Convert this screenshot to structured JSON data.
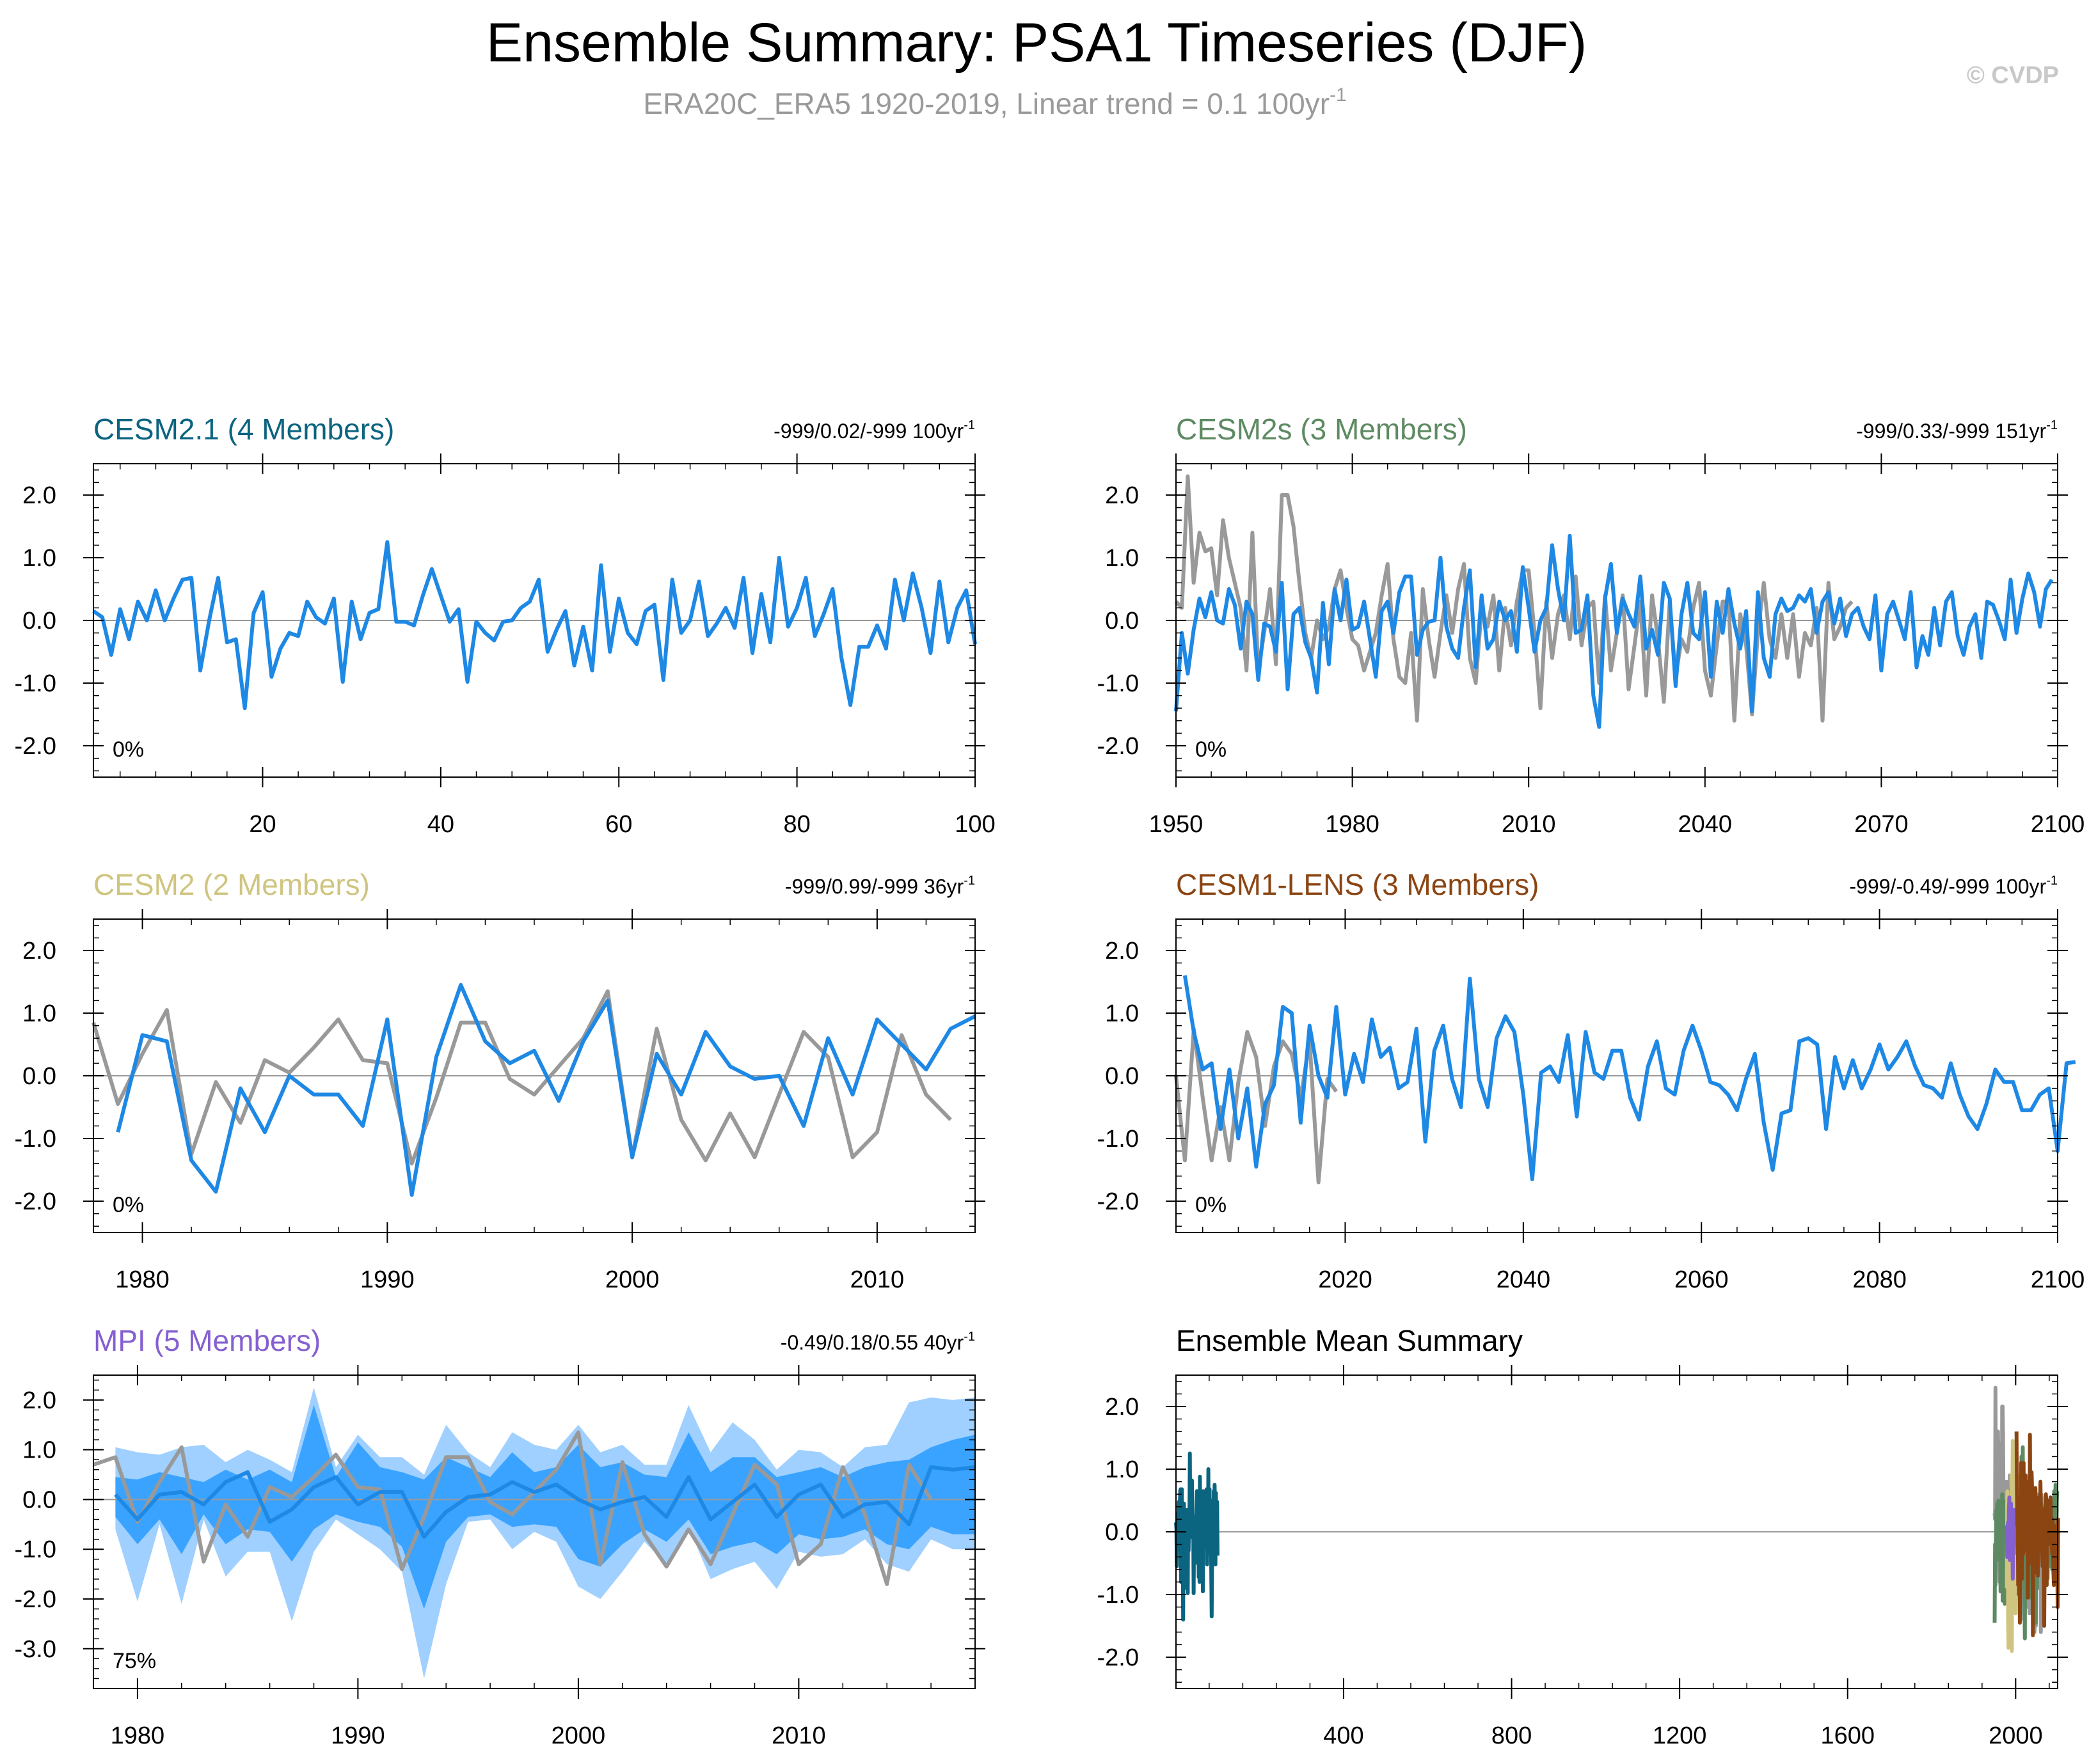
{
  "page": {
    "title": "Ensemble Summary: PSA1 Timeseries (DJF)",
    "subtitle": "ERA20C_ERA5 1920-2019, Linear trend = 0.1 100yr",
    "subtitle_exponent": "-1",
    "copyright": "© CVDP"
  },
  "colors": {
    "model_line": "#1e88e5",
    "obs_line": "#999999",
    "spread_outer": "#9fd0ff",
    "spread_inner": "#3aa3ff",
    "CESM2.1": "#0b6480",
    "CESM2s": "#5d8a62",
    "CESM2": "#cfc580",
    "CESM1-LENS": "#8b4513",
    "MPI": "#8560d0"
  },
  "chart_data": [
    {
      "id": "cesm21",
      "type": "line",
      "title": "CESM2.1 (4 Members)",
      "title_color": "#0b6480",
      "trend_label": "-999/0.02/-999 100yr",
      "trend_exp": "-1",
      "pct_label": "0%",
      "xlim": [
        1,
        100
      ],
      "ylim": [
        -2.5,
        2.5
      ],
      "xticks": [
        20,
        40,
        60,
        80,
        100
      ],
      "yticks": [
        -2.0,
        -1.0,
        0.0,
        1.0,
        2.0
      ],
      "ytick_labels": [
        "-2.0",
        "-1.0",
        "0.0",
        "1.0",
        "2.0"
      ],
      "series": [
        {
          "role": "model",
          "x_start": 1,
          "x_step": 1,
          "values": [
            0.15,
            0.05,
            -0.55,
            0.18,
            -0.3,
            0.3,
            0.0,
            0.48,
            0.0,
            0.35,
            0.65,
            0.68,
            -0.8,
            0.0,
            0.68,
            -0.35,
            -0.3,
            -1.4,
            0.12,
            0.45,
            -0.9,
            -0.45,
            -0.2,
            -0.25,
            0.3,
            0.05,
            -0.05,
            0.35,
            -0.98,
            0.3,
            -0.3,
            0.12,
            0.18,
            1.25,
            -0.02,
            -0.02,
            -0.08,
            0.4,
            0.82,
            0.4,
            -0.02,
            0.18,
            -0.98,
            -0.02,
            -0.2,
            -0.32,
            -0.02,
            0.0,
            0.2,
            0.3,
            0.65,
            -0.5,
            -0.15,
            0.15,
            -0.72,
            -0.1,
            -0.8,
            0.88,
            -0.5,
            0.35,
            -0.2,
            -0.38,
            0.15,
            0.25,
            -0.95,
            0.65,
            -0.2,
            0.0,
            0.62,
            -0.25,
            -0.05,
            0.2,
            -0.12,
            0.68,
            -0.52,
            0.42,
            -0.35,
            1.0,
            -0.1,
            0.2,
            0.68,
            -0.25,
            0.1,
            0.5,
            -0.6,
            -1.35,
            -0.42,
            -0.42,
            -0.08,
            -0.45,
            0.65,
            0.0,
            0.75,
            0.2,
            -0.52,
            0.62,
            -0.35,
            0.2,
            0.48,
            -0.38
          ]
        }
      ]
    },
    {
      "id": "cesm2s",
      "type": "line",
      "title": "CESM2s (3 Members)",
      "title_color": "#5d8a62",
      "trend_label": "-999/0.33/-999 151yr",
      "trend_exp": "-1",
      "pct_label": "0%",
      "xlim": [
        1950,
        2100
      ],
      "ylim": [
        -2.5,
        2.5
      ],
      "xticks": [
        1950,
        1980,
        2010,
        2040,
        2070,
        2100
      ],
      "yticks": [
        -2.0,
        -1.0,
        0.0,
        1.0,
        2.0
      ],
      "ytick_labels": [
        "-2.0",
        "-1.0",
        "0.0",
        "1.0",
        "2.0"
      ],
      "series": [
        {
          "role": "obs",
          "x_start": 1950,
          "x_step": 1,
          "values": [
            0.3,
            0.2,
            2.3,
            0.6,
            1.4,
            1.1,
            1.15,
            0.4,
            1.6,
            1.0,
            0.6,
            0.2,
            -0.8,
            1.4,
            -0.8,
            -0.2,
            0.5,
            -0.7,
            2.0,
            2.0,
            1.5,
            0.6,
            -0.2,
            -0.6,
            0.0,
            -0.3,
            -0.1,
            0.5,
            0.8,
            0.2,
            -0.3,
            -0.4,
            -0.8,
            -0.5,
            -0.2,
            0.4,
            0.9,
            -0.3,
            -0.9,
            -1.0,
            -0.2,
            -1.6,
            0.5,
            -0.3,
            -0.9,
            -0.2,
            0.4,
            -0.2,
            0.5,
            0.9,
            -0.6,
            -1.0,
            0.2,
            -0.1,
            0.4,
            -0.8,
            0.2,
            -0.4,
            0.3,
            0.8,
            0.8,
            -0.2,
            -1.4,
            0.3,
            -0.6,
            0.1,
            0.4,
            -0.3,
            0.7,
            -0.4,
            0.2,
            0.3,
            -1.0,
            0.4,
            -0.8,
            -0.2,
            0.4,
            -1.1,
            -0.4,
            0.3,
            -1.2,
            0.4,
            -0.3,
            -1.3,
            0.3,
            -0.9,
            -0.3,
            -0.5,
            0.2,
            0.6,
            -0.8,
            -1.2,
            -0.4,
            0.3,
            0.3,
            -1.6,
            0.1,
            -0.4,
            -1.5,
            -0.2,
            0.6,
            -0.3,
            -0.6,
            0.1,
            -0.6,
            0.1,
            -0.9,
            -0.2,
            -0.4,
            0.2,
            -1.6,
            0.6,
            -0.3,
            -0.1,
            0.2,
            0.3
          ]
        },
        {
          "role": "model",
          "x_start": 1950,
          "x_step": 1,
          "values": [
            -1.45,
            -0.2,
            -0.85,
            -0.15,
            0.35,
            0.05,
            0.45,
            0.0,
            -0.05,
            0.5,
            0.25,
            -0.45,
            0.3,
            0.1,
            -0.95,
            -0.05,
            -0.1,
            -0.5,
            0.6,
            -1.1,
            0.1,
            0.2,
            -0.35,
            -0.6,
            -1.15,
            0.28,
            -0.7,
            0.5,
            0.0,
            0.65,
            -0.15,
            -0.1,
            0.3,
            -0.3,
            -0.9,
            0.15,
            0.3,
            -0.2,
            0.45,
            0.7,
            0.7,
            -0.55,
            -0.15,
            -0.02,
            0.0,
            1.0,
            -0.1,
            -0.45,
            -0.6,
            0.2,
            0.8,
            -0.75,
            0.4,
            -0.45,
            -0.3,
            0.3,
            0.0,
            0.15,
            -0.5,
            0.85,
            0.2,
            -0.5,
            0.0,
            0.2,
            1.2,
            0.5,
            0.0,
            1.35,
            -0.2,
            -0.15,
            0.4,
            -1.2,
            -1.7,
            0.35,
            0.9,
            -0.2,
            0.35,
            0.1,
            -0.1,
            0.7,
            -0.45,
            -0.15,
            -0.55,
            0.6,
            0.35,
            -1.05,
            0.1,
            0.6,
            -0.2,
            -0.3,
            0.45,
            -0.9,
            0.3,
            -0.2,
            0.5,
            -0.05,
            -0.45,
            0.15,
            -1.45,
            0.45,
            -0.6,
            -0.9,
            0.1,
            0.35,
            0.15,
            0.2,
            0.4,
            0.3,
            0.5,
            -0.2,
            0.3,
            0.45,
            -0.05,
            0.35,
            -0.25,
            0.1,
            0.2,
            -0.1,
            -0.3,
            0.4,
            -0.8,
            0.1,
            0.3,
            0.0,
            -0.3,
            0.45,
            -0.75,
            -0.25,
            -0.55,
            0.2,
            -0.4,
            0.3,
            0.45,
            -0.25,
            -0.55,
            -0.1,
            0.1,
            -0.6,
            0.3,
            0.25,
            0.0,
            -0.3,
            0.65,
            -0.2,
            0.35,
            0.75,
            0.45,
            -0.1,
            0.5,
            0.65
          ]
        }
      ]
    },
    {
      "id": "cesm2",
      "type": "line",
      "title": "CESM2 (2 Members)",
      "title_color": "#cfc580",
      "trend_label": "-999/0.99/-999 36yr",
      "trend_exp": "-1",
      "pct_label": "0%",
      "xlim": [
        1978,
        2014
      ],
      "ylim": [
        -2.5,
        2.5
      ],
      "xticks": [
        1980,
        1990,
        2000,
        2010
      ],
      "yticks": [
        -2.0,
        -1.0,
        0.0,
        1.0,
        2.0
      ],
      "ytick_labels": [
        "-2.0",
        "-1.0",
        "0.0",
        "1.0",
        "2.0"
      ],
      "series": [
        {
          "role": "obs",
          "x_start": 1978,
          "x_step": 1,
          "values": [
            0.85,
            -0.45,
            0.35,
            1.05,
            -1.25,
            -0.1,
            -0.75,
            0.25,
            0.05,
            0.45,
            0.9,
            0.25,
            0.2,
            -1.4,
            -0.35,
            0.85,
            0.85,
            -0.05,
            -0.3,
            0.15,
            0.6,
            1.35,
            -1.3,
            0.75,
            -0.7,
            -1.35,
            -0.6,
            -1.3,
            -0.3,
            0.7,
            0.3,
            -1.3,
            -0.9,
            0.65,
            -0.3,
            -0.7
          ]
        },
        {
          "role": "model",
          "x_start": 1979,
          "x_step": 1,
          "values": [
            -0.9,
            0.65,
            0.55,
            -1.35,
            -1.85,
            -0.2,
            -0.9,
            0.0,
            -0.3,
            -0.3,
            -0.8,
            0.9,
            -1.9,
            0.3,
            1.45,
            0.55,
            0.2,
            0.4,
            -0.4,
            0.55,
            1.2,
            -1.3,
            0.35,
            -0.3,
            0.7,
            0.15,
            -0.05,
            0.0,
            -0.8,
            0.6,
            -0.3,
            0.9,
            0.5,
            0.1,
            0.75,
            0.95
          ]
        }
      ]
    },
    {
      "id": "cesm1lens",
      "type": "line",
      "title": "CESM1-LENS (3 Members)",
      "title_color": "#8b4513",
      "trend_label": "-999/-0.49/-999 100yr",
      "trend_exp": "-1",
      "pct_label": "0%",
      "xlim": [
        2001,
        2100
      ],
      "ylim": [
        -2.5,
        2.5
      ],
      "xticks": [
        2020,
        2040,
        2060,
        2080,
        2100
      ],
      "yticks": [
        -2.0,
        -1.0,
        0.0,
        1.0,
        2.0
      ],
      "ytick_labels": [
        "-2.0",
        "-1.0",
        "0.0",
        "1.0",
        "2.0"
      ],
      "series": [
        {
          "role": "obs",
          "x_start": 2001,
          "x_step": 1,
          "values": [
            0.0,
            -1.35,
            0.75,
            -0.35,
            -1.35,
            -0.5,
            -1.35,
            -0.1,
            0.7,
            0.3,
            -0.8,
            0.15,
            0.55,
            0.35,
            -0.35,
            0.55,
            -1.7,
            -0.05,
            -0.25
          ]
        },
        {
          "role": "model",
          "x_start": 2002,
          "x_step": 1,
          "values": [
            1.6,
            0.7,
            0.1,
            0.2,
            -0.85,
            0.1,
            -1.0,
            -0.2,
            -1.45,
            -0.45,
            -0.15,
            1.1,
            1.0,
            -0.75,
            0.8,
            0.0,
            -0.35,
            1.1,
            -0.3,
            0.35,
            -0.1,
            0.9,
            0.3,
            0.45,
            -0.2,
            -0.1,
            0.75,
            -1.05,
            0.4,
            0.8,
            -0.05,
            -0.5,
            1.55,
            -0.05,
            -0.5,
            0.6,
            0.95,
            0.7,
            -0.3,
            -1.65,
            0.05,
            0.15,
            -0.1,
            0.65,
            -0.65,
            0.7,
            0.05,
            -0.05,
            0.4,
            0.4,
            -0.35,
            -0.7,
            0.15,
            0.55,
            -0.2,
            -0.3,
            0.4,
            0.8,
            0.4,
            -0.1,
            -0.15,
            -0.3,
            -0.55,
            -0.05,
            0.35,
            -0.75,
            -1.5,
            -0.6,
            -0.55,
            0.55,
            0.6,
            0.5,
            -0.85,
            0.3,
            -0.2,
            0.25,
            -0.2,
            0.1,
            0.5,
            0.1,
            0.3,
            0.55,
            0.15,
            -0.15,
            -0.2,
            -0.35,
            0.2,
            -0.3,
            -0.65,
            -0.85,
            -0.45,
            0.1,
            -0.1,
            -0.1,
            -0.55,
            -0.55,
            -0.3,
            -0.2,
            -1.2,
            0.2,
            0.22
          ]
        }
      ]
    },
    {
      "id": "mpi",
      "type": "area",
      "title": "MPI (5 Members)",
      "title_color": "#8560d0",
      "trend_label": "-0.49/0.18/0.55 40yr",
      "trend_exp": "-1",
      "pct_label": "75%",
      "xlim": [
        1978,
        2018
      ],
      "ylim": [
        -3.8,
        2.5
      ],
      "xticks": [
        1980,
        1990,
        2000,
        2010
      ],
      "yticks": [
        -3.0,
        -2.0,
        -1.0,
        0.0,
        1.0,
        2.0
      ],
      "ytick_labels": [
        "-3.0",
        "-2.0",
        "-1.0",
        "0.0",
        "1.0",
        "2.0"
      ],
      "band_x_start": 1979,
      "band_outer_upper": [
        1.05,
        0.95,
        0.9,
        1.05,
        1.1,
        0.75,
        1.0,
        0.8,
        0.55,
        2.25,
        0.65,
        1.3,
        0.85,
        0.85,
        0.5,
        1.5,
        0.95,
        0.65,
        1.35,
        1.1,
        1.0,
        1.5,
        0.95,
        1.1,
        0.7,
        0.7,
        1.9,
        0.95,
        1.55,
        1.2,
        0.6,
        1.0,
        0.95,
        0.65,
        1.05,
        1.1,
        1.95,
        2.05,
        2.0,
        2.05
      ],
      "band_outer_lower": [
        -0.6,
        -2.05,
        -0.5,
        -2.1,
        -0.4,
        -1.55,
        -1.05,
        -1.05,
        -2.45,
        -1.05,
        -0.4,
        -0.7,
        -1.0,
        -1.45,
        -3.6,
        -1.7,
        -0.45,
        -0.4,
        -1.0,
        -0.65,
        -0.85,
        -1.75,
        -2.0,
        -1.45,
        -0.85,
        -1.3,
        -0.55,
        -1.6,
        -1.4,
        -1.25,
        -1.8,
        -1.05,
        -1.15,
        -1.1,
        -0.8,
        -1.3,
        -1.45,
        -0.8,
        -1.0,
        -1.0
      ],
      "band_inner_upper": [
        0.45,
        0.4,
        0.55,
        0.45,
        0.35,
        0.6,
        0.4,
        0.6,
        0.35,
        1.9,
        0.45,
        1.15,
        0.65,
        0.55,
        0.4,
        0.85,
        0.65,
        0.45,
        0.95,
        0.55,
        0.65,
        1.1,
        0.65,
        0.75,
        0.5,
        0.45,
        1.35,
        0.55,
        0.85,
        0.85,
        0.45,
        0.55,
        0.65,
        0.45,
        0.65,
        0.75,
        0.8,
        1.05,
        1.2,
        1.3
      ],
      "band_inner_lower": [
        -0.35,
        -0.9,
        -0.4,
        -1.1,
        -0.3,
        -0.9,
        -0.6,
        -0.65,
        -1.25,
        -0.6,
        -0.3,
        -0.45,
        -0.55,
        -0.95,
        -2.2,
        -0.85,
        -0.35,
        -0.3,
        -0.55,
        -0.5,
        -0.55,
        -1.2,
        -1.35,
        -0.9,
        -0.6,
        -0.85,
        -0.4,
        -1.1,
        -0.95,
        -0.85,
        -1.1,
        -0.7,
        -0.8,
        -0.75,
        -0.6,
        -0.9,
        -1.0,
        -0.55,
        -0.7,
        -0.7
      ],
      "series": [
        {
          "role": "obs",
          "x_start": 1978,
          "x_step": 1,
          "values": [
            0.7,
            0.85,
            -0.45,
            0.35,
            1.05,
            -1.25,
            -0.1,
            -0.75,
            0.25,
            0.05,
            0.45,
            0.9,
            0.25,
            0.2,
            -1.4,
            -0.35,
            0.85,
            0.85,
            -0.05,
            -0.3,
            0.15,
            0.6,
            1.35,
            -1.3,
            0.75,
            -0.7,
            -1.35,
            -0.6,
            -1.3,
            -0.3,
            0.7,
            0.3,
            -1.3,
            -0.9,
            0.65,
            -0.3,
            -1.7,
            0.7,
            0.0
          ]
        },
        {
          "role": "model",
          "x_start": 1979,
          "x_step": 1,
          "values": [
            0.1,
            -0.4,
            0.1,
            0.15,
            -0.1,
            0.35,
            0.55,
            -0.45,
            -0.2,
            0.25,
            0.45,
            -0.1,
            0.15,
            0.15,
            -0.75,
            -0.25,
            0.05,
            0.1,
            0.35,
            0.15,
            0.3,
            0.0,
            -0.2,
            -0.05,
            0.05,
            -0.35,
            0.45,
            -0.4,
            -0.05,
            0.3,
            -0.35,
            0.1,
            0.3,
            -0.35,
            -0.1,
            -0.05,
            -0.5,
            0.65,
            0.6,
            0.65
          ]
        }
      ]
    },
    {
      "id": "summary",
      "type": "line",
      "title": "Ensemble Mean Summary",
      "title_color": "#000000",
      "xlim": [
        1,
        2100
      ],
      "ylim": [
        -2.5,
        2.5
      ],
      "xticks": [
        400,
        800,
        1200,
        1600,
        2000
      ],
      "yticks": [
        -2.0,
        -1.0,
        0.0,
        1.0,
        2.0
      ],
      "ytick_labels": [
        "-2.0",
        "-1.0",
        "0.0",
        "1.0",
        "2.0"
      ],
      "series": [
        {
          "ref": "cesm21",
          "color_key": "CESM2.1"
        },
        {
          "ref": "cesm2s",
          "series_index": 0,
          "color_key": "obs_line"
        },
        {
          "ref": "cesm2s",
          "series_index": 1,
          "color_key": "CESM2s"
        },
        {
          "ref": "cesm2",
          "color_key": "CESM2"
        },
        {
          "ref": "mpi",
          "color_key": "MPI"
        },
        {
          "ref": "cesm1lens",
          "color_key": "CESM1-LENS"
        }
      ]
    }
  ]
}
